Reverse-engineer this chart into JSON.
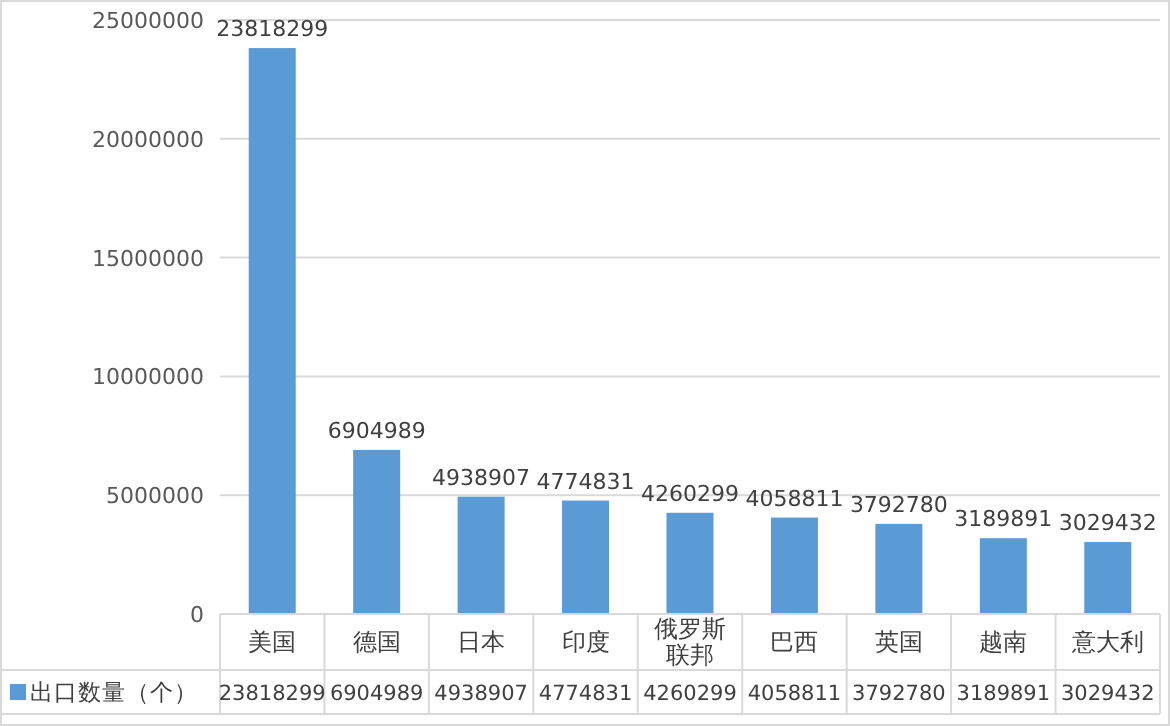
{
  "chart_data": {
    "type": "bar",
    "categories": [
      "美国",
      "德国",
      "日本",
      "印度",
      "俄罗斯联邦",
      "巴西",
      "英国",
      "越南",
      "意大利"
    ],
    "series": [
      {
        "name": "出口数量（个）",
        "color": "#5b9bd5",
        "values": [
          23818299,
          6904989,
          4938907,
          4774831,
          4260299,
          4058811,
          3792780,
          3189891,
          3029432
        ],
        "value_labels": [
          "23818299",
          "6904989",
          "4938907",
          "4774831",
          "4260299",
          "4058811",
          "3792780",
          "3189891",
          "3029432"
        ]
      }
    ],
    "ylim": [
      0,
      25000000
    ],
    "yticks": [
      0,
      5000000,
      10000000,
      15000000,
      20000000,
      25000000
    ],
    "grid": "y",
    "data_labels": true,
    "legend": "bottom"
  }
}
